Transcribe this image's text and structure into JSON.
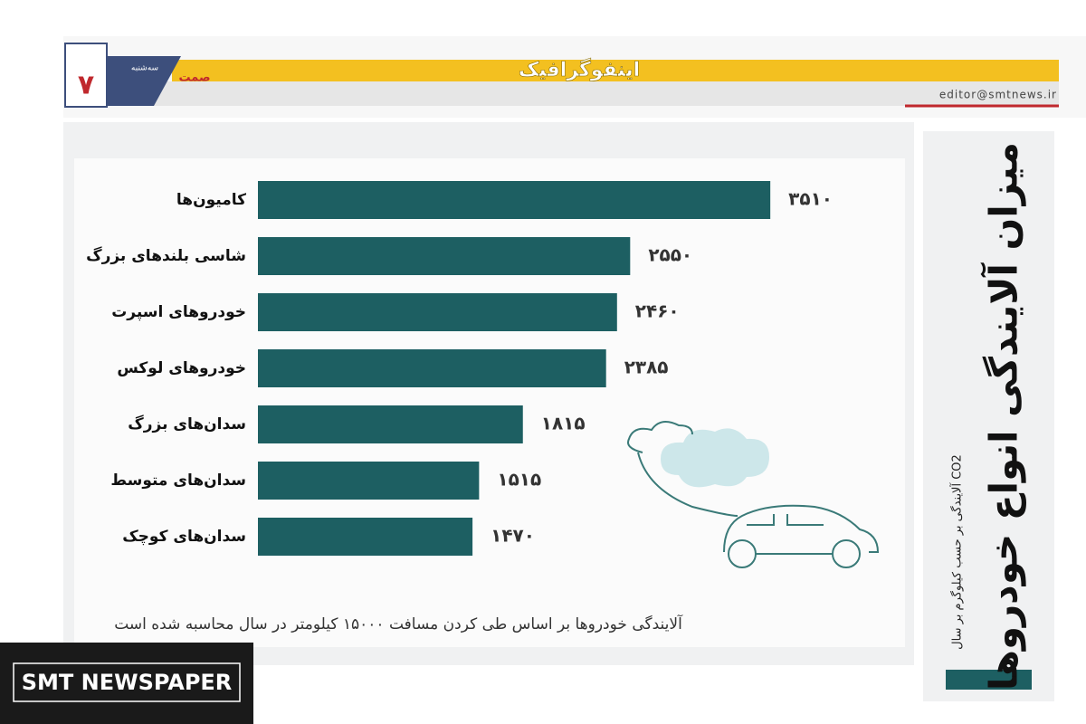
{
  "header": {
    "section": "اینفوگرافیک",
    "email": "editor@smtnews.ir",
    "page": "۷",
    "logo": "صمت",
    "day": "سه‌شنبه"
  },
  "watermark": "SMT NEWSPAPER",
  "chart_data": {
    "type": "bar",
    "orientation": "horizontal",
    "title": "میزان آلایندگی انواع خودروها",
    "subtitle": "آلایندگی بر حسب کیلوگرم بر سال CO2",
    "note": "آلایندگی خودروها بر اساس طی کردن مسافت ۱۵۰۰۰ کیلومتر در سال محاسبه شده است",
    "categories": [
      "کامیون‌ها",
      "شاسی بلندهای بزرگ",
      "خودروهای اسپرت",
      "خودروهای لوکس",
      "سدان‌های بزرگ",
      "سدان‌های متوسط",
      "سدان‌های کوچک"
    ],
    "values": [
      3510,
      2550,
      2460,
      2385,
      1815,
      1515,
      1470
    ],
    "value_labels": [
      "۳۵۱۰",
      "۲۵۵۰",
      "۲۴۶۰",
      "۲۳۸۵",
      "۱۸۱۵",
      "۱۵۱۵",
      "۱۴۷۰"
    ],
    "color": "#1d5f62"
  }
}
